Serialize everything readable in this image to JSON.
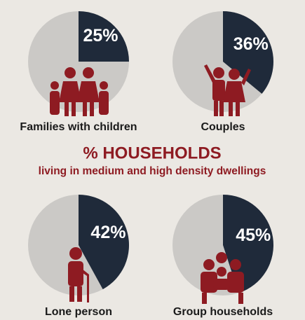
{
  "title": "% HOUSEHOLDS",
  "subtitle": "living in medium and high density dwellings",
  "chart_data": [
    {
      "type": "pie",
      "label": "Families with children",
      "values": [
        25
      ],
      "value_labels": [
        "25%"
      ],
      "color": "#1f2a3a",
      "rest_color": "#cbc9c6"
    },
    {
      "type": "pie",
      "label": "Couples",
      "values": [
        36
      ],
      "value_labels": [
        "36%"
      ],
      "color": "#1f2a3a",
      "rest_color": "#cbc9c6"
    },
    {
      "type": "pie",
      "label": "Lone person",
      "values": [
        42
      ],
      "value_labels": [
        "42%"
      ],
      "color": "#1f2a3a",
      "rest_color": "#cbc9c6"
    },
    {
      "type": "pie",
      "label": "Group households",
      "values": [
        45
      ],
      "value_labels": [
        "45%"
      ],
      "color": "#1f2a3a",
      "rest_color": "#cbc9c6"
    }
  ]
}
